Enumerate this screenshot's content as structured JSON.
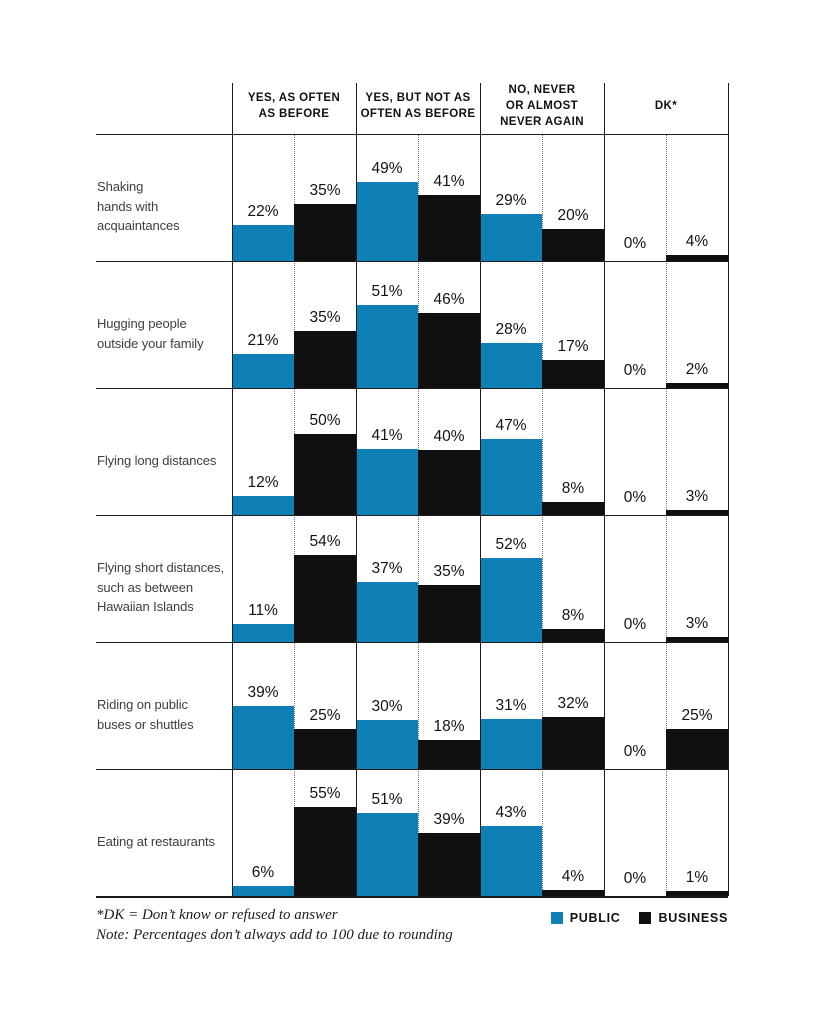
{
  "chart_data": {
    "type": "bar",
    "variant": "grouped-bar-matrix",
    "title": "",
    "value_suffix": "%",
    "grid": "table",
    "legend_position": "bottom-right",
    "columns": [
      "YES, AS OFTEN\nAS BEFORE",
      "YES, BUT NOT AS\nOFTEN AS BEFORE",
      "NO, NEVER\nOR ALMOST\nNEVER AGAIN",
      "DK*"
    ],
    "series": [
      {
        "name": "PUBLIC",
        "color": "#0f80b5"
      },
      {
        "name": "BUSINESS",
        "color": "#101010"
      }
    ],
    "rows": [
      {
        "label": "Shaking\nhands with\nacquaintances",
        "values": [
          [
            22,
            35
          ],
          [
            49,
            41
          ],
          [
            29,
            20
          ],
          [
            0,
            4
          ]
        ]
      },
      {
        "label": "Hugging people\noutside your family",
        "values": [
          [
            21,
            35
          ],
          [
            51,
            46
          ],
          [
            28,
            17
          ],
          [
            0,
            2
          ]
        ]
      },
      {
        "label": "Flying long distances",
        "values": [
          [
            12,
            50
          ],
          [
            41,
            40
          ],
          [
            47,
            8
          ],
          [
            0,
            3
          ]
        ]
      },
      {
        "label": "Flying short distances,\nsuch as between\nHawaiian Islands",
        "values": [
          [
            11,
            54
          ],
          [
            37,
            35
          ],
          [
            52,
            8
          ],
          [
            0,
            3
          ]
        ]
      },
      {
        "label": "Riding on public\nbuses or shuttles",
        "values": [
          [
            39,
            25
          ],
          [
            30,
            18
          ],
          [
            31,
            32
          ],
          [
            0,
            25
          ]
        ]
      },
      {
        "label": "Eating at restaurants",
        "values": [
          [
            6,
            55
          ],
          [
            51,
            39
          ],
          [
            43,
            4
          ],
          [
            0,
            1
          ]
        ]
      }
    ]
  },
  "footnotes": [
    "*DK = Don’t know or refused to answer",
    "Note: Percentages don’t always add to 100 due to rounding"
  ]
}
